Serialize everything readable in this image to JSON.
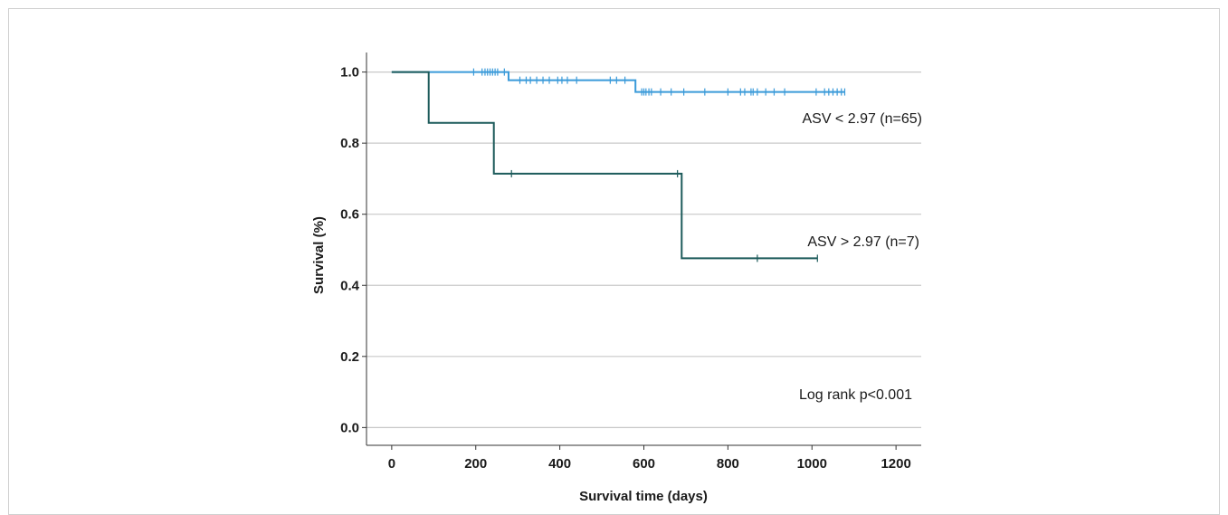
{
  "chart_data": {
    "type": "line",
    "subtype": "kaplan-meier",
    "xlabel": "Survival time (days)",
    "ylabel": "Survival (%)",
    "xlim": [
      -60,
      1260
    ],
    "ylim": [
      -0.05,
      1.055
    ],
    "xticks": [
      0,
      200,
      400,
      600,
      800,
      1000,
      1200
    ],
    "yticks": [
      0.0,
      0.2,
      0.4,
      0.6,
      0.8,
      1.0
    ],
    "ytick_labels": [
      "0.0",
      "0.2",
      "0.4",
      "0.6",
      "0.8",
      "1.0"
    ],
    "grid": "horizontal",
    "series": [
      {
        "name": "ASV < 2.97 (n=65)",
        "color": "#3a9ad9",
        "steps": [
          [
            0,
            1.0
          ],
          [
            278,
            0.977
          ],
          [
            580,
            0.944
          ],
          [
            1078,
            0.944
          ]
        ],
        "censored": [
          [
            195,
            1.0
          ],
          [
            215,
            1.0
          ],
          [
            222,
            1.0
          ],
          [
            228,
            1.0
          ],
          [
            234,
            1.0
          ],
          [
            240,
            1.0
          ],
          [
            246,
            1.0
          ],
          [
            252,
            1.0
          ],
          [
            268,
            1.0
          ],
          [
            305,
            0.977
          ],
          [
            320,
            0.977
          ],
          [
            330,
            0.977
          ],
          [
            345,
            0.977
          ],
          [
            360,
            0.977
          ],
          [
            375,
            0.977
          ],
          [
            395,
            0.977
          ],
          [
            405,
            0.977
          ],
          [
            418,
            0.977
          ],
          [
            440,
            0.977
          ],
          [
            520,
            0.977
          ],
          [
            535,
            0.977
          ],
          [
            555,
            0.977
          ],
          [
            595,
            0.944
          ],
          [
            600,
            0.944
          ],
          [
            605,
            0.944
          ],
          [
            612,
            0.944
          ],
          [
            618,
            0.944
          ],
          [
            640,
            0.944
          ],
          [
            665,
            0.944
          ],
          [
            695,
            0.944
          ],
          [
            745,
            0.944
          ],
          [
            800,
            0.944
          ],
          [
            830,
            0.944
          ],
          [
            840,
            0.944
          ],
          [
            855,
            0.944
          ],
          [
            860,
            0.944
          ],
          [
            870,
            0.944
          ],
          [
            890,
            0.944
          ],
          [
            910,
            0.944
          ],
          [
            935,
            0.944
          ],
          [
            1010,
            0.944
          ],
          [
            1030,
            0.944
          ],
          [
            1040,
            0.944
          ],
          [
            1050,
            0.944
          ],
          [
            1060,
            0.944
          ],
          [
            1070,
            0.944
          ],
          [
            1078,
            0.944
          ]
        ]
      },
      {
        "name": "ASV > 2.97 (n=7)",
        "color": "#1d5b5b",
        "steps": [
          [
            0,
            1.0
          ],
          [
            88,
            0.857
          ],
          [
            243,
            0.714
          ],
          [
            690,
            0.476
          ],
          [
            1013,
            0.476
          ]
        ],
        "censored": [
          [
            285,
            0.714
          ],
          [
            680,
            0.714
          ],
          [
            870,
            0.476
          ],
          [
            1013,
            0.476
          ]
        ]
      }
    ],
    "annotations": [
      "Log rank p<0.001"
    ]
  }
}
